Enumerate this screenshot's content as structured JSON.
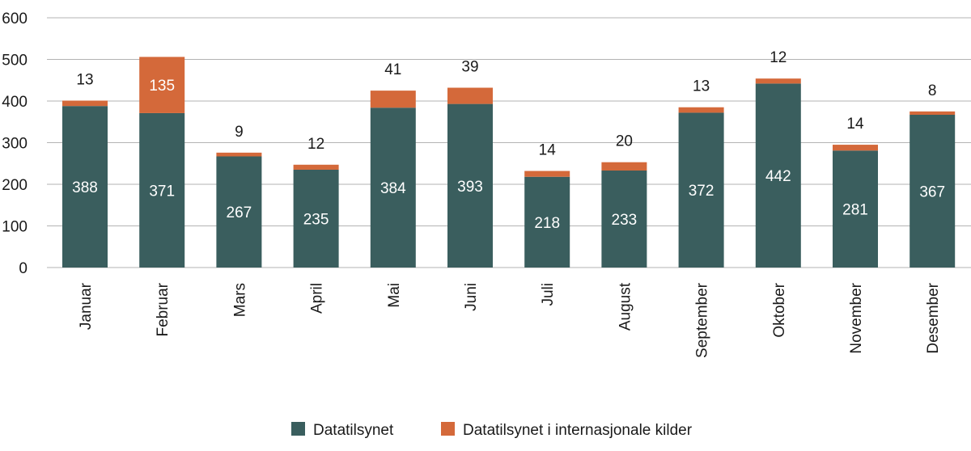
{
  "chart_data": {
    "type": "bar",
    "stacked": true,
    "categories": [
      "Januar",
      "Februar",
      "Mars",
      "April",
      "Mai",
      "Juni",
      "Juli",
      "August",
      "September",
      "Oktober",
      "November",
      "Desember"
    ],
    "series": [
      {
        "name": "Datatilsynet",
        "color": "#3a5e5e",
        "values": [
          388,
          371,
          267,
          235,
          384,
          393,
          218,
          233,
          372,
          442,
          281,
          367
        ]
      },
      {
        "name": "Datatilsynet i internasjonale kilder",
        "color": "#d4693a",
        "values": [
          13,
          135,
          9,
          12,
          41,
          39,
          14,
          20,
          13,
          12,
          14,
          8
        ]
      }
    ],
    "ylim": [
      0,
      600
    ],
    "yticks": [
      0,
      100,
      200,
      300,
      400,
      500,
      600
    ],
    "grid": "horizontal",
    "legend_position": "bottom",
    "title": "",
    "xlabel": "",
    "ylabel": ""
  }
}
